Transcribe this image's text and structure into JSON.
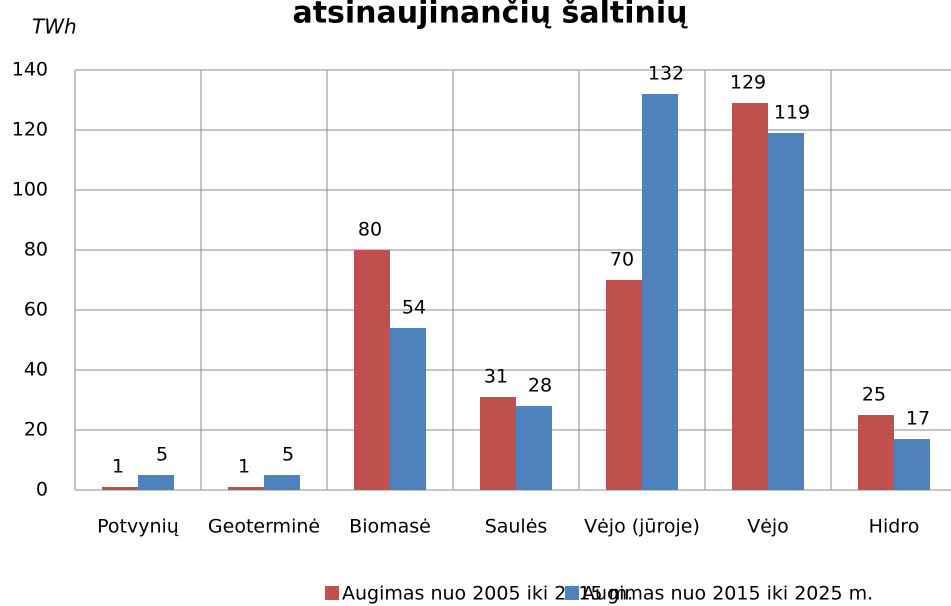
{
  "chart_data": {
    "type": "bar",
    "title": "atsinaujinančių šaltinių",
    "ylabel": "TWh",
    "categories": [
      "Potvynių",
      "Geoterminė",
      "Biomasė",
      "Saulės",
      "Vėjo (jūroje)",
      "Vėjo",
      "Hidro"
    ],
    "series": [
      {
        "name": "Augimas nuo 2005 iki 2015 m.",
        "color": "#c0504d",
        "values": [
          1,
          1,
          80,
          31,
          70,
          129,
          25
        ]
      },
      {
        "name": "Augimas nuo 2015 iki 2025 m.",
        "color": "#4f81bd",
        "values": [
          5,
          5,
          54,
          28,
          132,
          119,
          17
        ]
      }
    ],
    "ylim": [
      0,
      140
    ],
    "yticks": [
      0,
      20,
      40,
      60,
      80,
      100,
      120,
      140
    ],
    "grid": true,
    "legend": "bottom"
  }
}
